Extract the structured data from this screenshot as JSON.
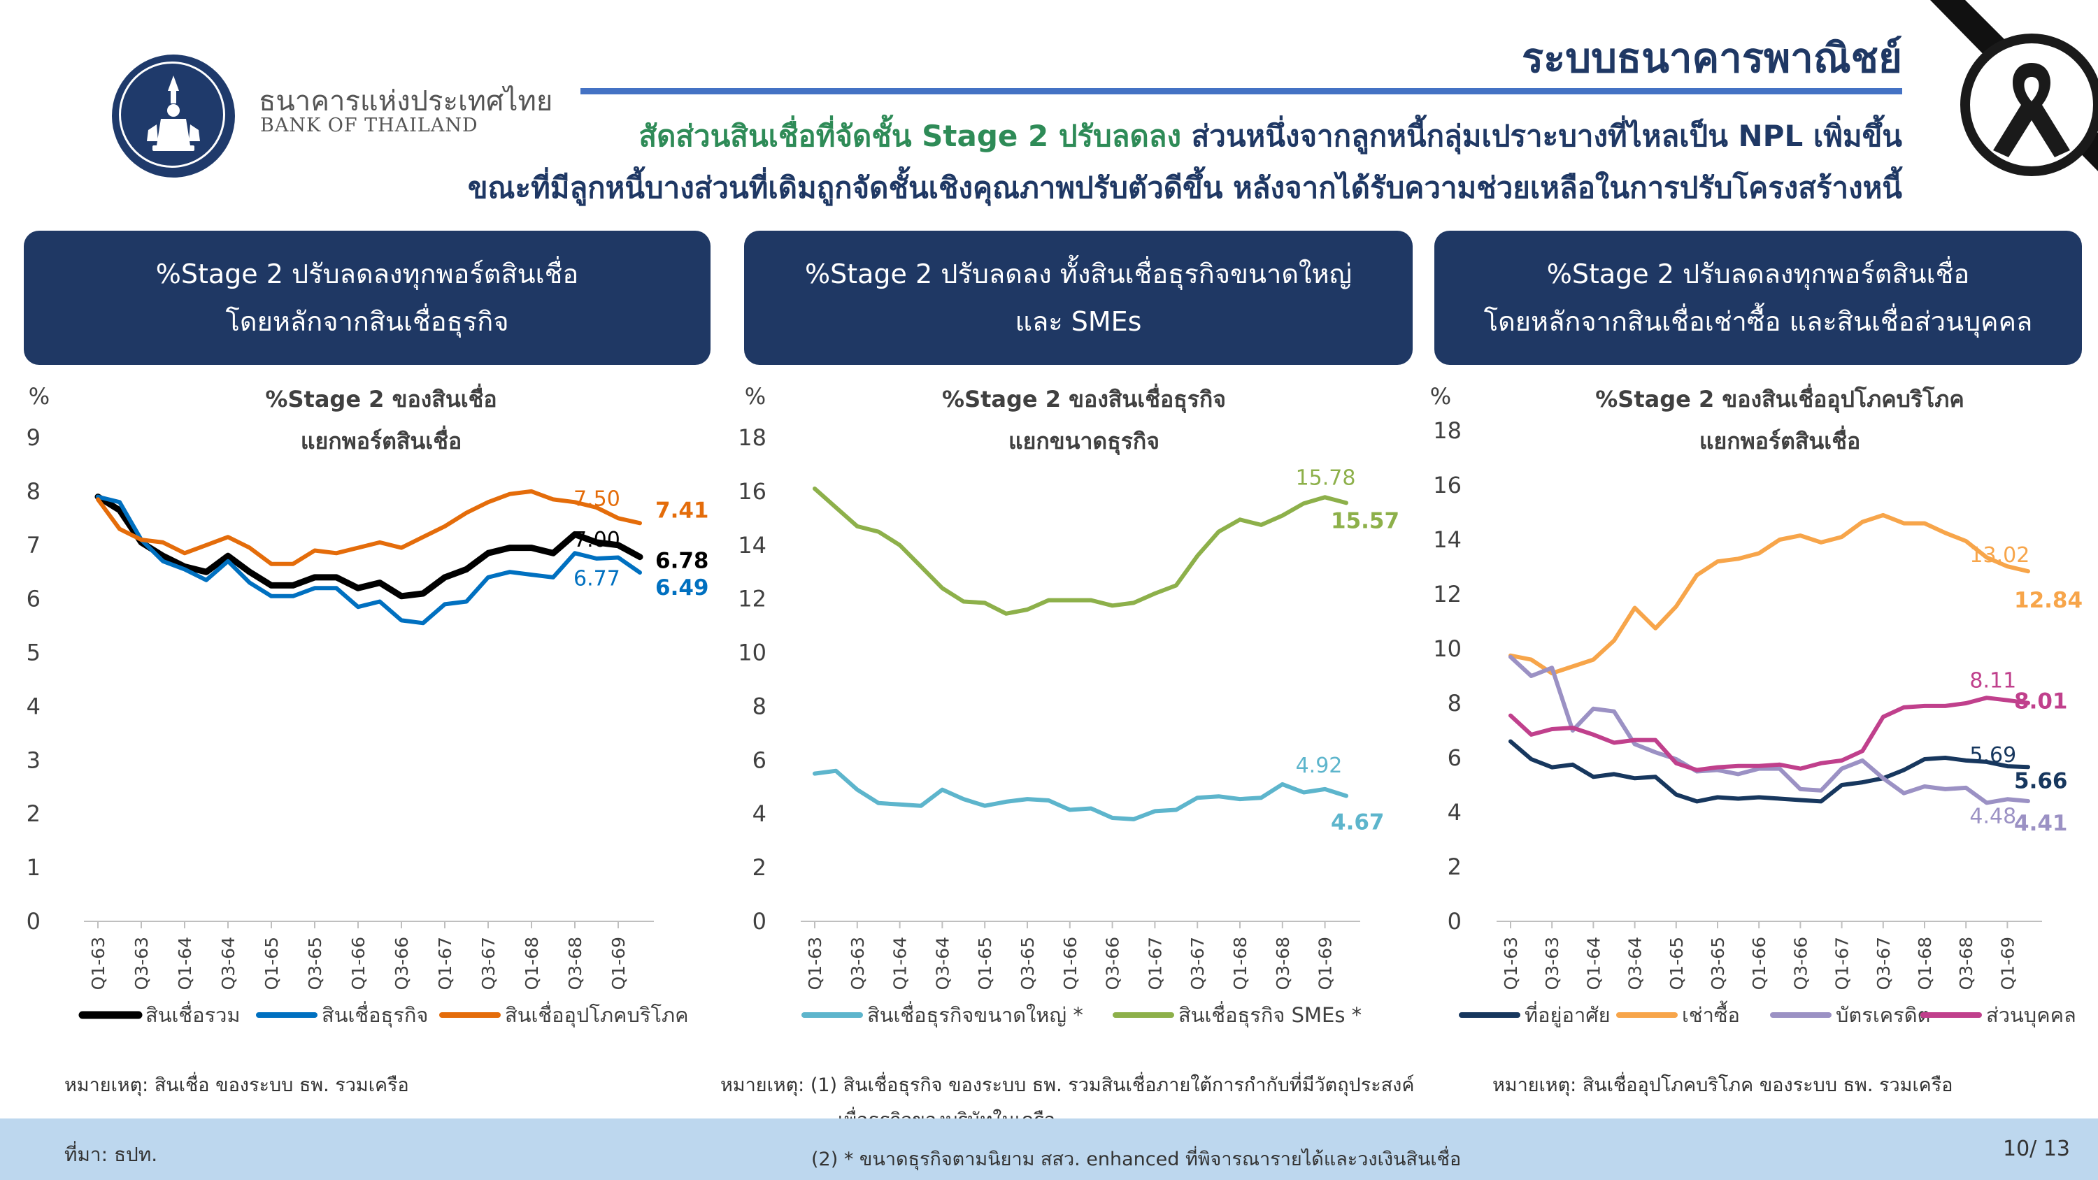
{
  "header": {
    "bank_name_th": "ธนาคารแห่งประเทศไทย",
    "bank_name_en": "BANK OF THAILAND",
    "page_title": "ระบบธนาคารพาณิชย์",
    "headline_part1": "สัดส่วนสินเชื่อที่จัดชั้น Stage 2 ปรับลดลง",
    "headline_part2": " ส่วนหนึ่งจากลูกหนี้กลุ่มเปราะบางที่ไหลเป็น NPL เพิ่มขึ้น",
    "headline_line2": "ขณะที่มีลูกหนี้บางส่วนที่เดิมถูกจัดชั้นเชิงคุณภาพปรับตัวดีขึ้น หลังจากได้รับความช่วยเหลือในการปรับโครงสร้างหนี้"
  },
  "colors": {
    "navy": "#1f3864",
    "black_series": "#000000",
    "blue_series": "#0070c0",
    "orange_series": "#e46c0a",
    "olive_series": "#8db04a",
    "cyan_series": "#5db5cc",
    "darknavy_series": "#17375e",
    "lightorange_series": "#f7a54a",
    "lavender_series": "#9b91c4",
    "magenta_series": "#c0408c"
  },
  "panels": [
    {
      "line1": "%Stage 2 ปรับลดลงทุกพอร์ตสินเชื่อ",
      "line2": "โดยหลักจากสินเชื่อธุรกิจ"
    },
    {
      "line1": "%Stage 2 ปรับลดลง ทั้งสินเชื่อธุรกิจขนาดใหญ่",
      "line2": "และ SMEs"
    },
    {
      "line1": "%Stage 2 ปรับลดลงทุกพอร์ตสินเชื่อ",
      "line2": "โดยหลักจากสินเชื่อเช่าซื้อ และสินเชื่อส่วนบุคคล"
    }
  ],
  "notes": {
    "note1": "หมายเหตุ: สินเชื่อ ของระบบ ธพ. รวมเครือ",
    "note2_a": "หมายเหตุ: (1) สินเชื่อธุรกิจ ของระบบ ธพ. รวมสินเชื่อภายใต้การกำกับที่มีวัตถุประสงค์",
    "note2_b": "เพื่อธุรกิจของบริษัทในเครือ",
    "note2_c": "(2) * ขนาดธุรกิจตามนิยาม สสว. enhanced ที่พิจารณารายได้และวงเงินสินเชื่อ",
    "note3": "หมายเหตุ: สินเชื่ออุปโภคบริโภค ของระบบ ธพ. รวมเครือ"
  },
  "footer": {
    "source": "ที่มา: ธปท.",
    "page": "10/ 13"
  },
  "chart_data": [
    {
      "type": "line",
      "title": "%Stage 2 ของสินเชื่อ",
      "subtitle": "แยกพอร์ตสินเชื่อ",
      "ylabel": "%",
      "ylim": [
        0,
        9
      ],
      "yticks": [
        0,
        1,
        2,
        3,
        4,
        5,
        6,
        7,
        8,
        9
      ],
      "x_tick_labels": [
        "Q1-63",
        "Q3-63",
        "Q1-64",
        "Q3-64",
        "Q1-65",
        "Q3-65",
        "Q1-66",
        "Q3-66",
        "Q1-67",
        "Q3-67",
        "Q1-68",
        "Q3-68",
        "Q1-69"
      ],
      "n_points": 26,
      "legend_position": "bottom",
      "series": [
        {
          "name": "สินเชื่อรวม",
          "color": "#000000",
          "width": 9,
          "values": [
            7.9,
            7.65,
            7.05,
            6.8,
            6.6,
            6.5,
            6.8,
            6.5,
            6.25,
            6.25,
            6.4,
            6.4,
            6.2,
            6.3,
            6.05,
            6.1,
            6.4,
            6.55,
            6.85,
            6.95,
            6.95,
            6.85,
            7.2,
            7.05,
            7.0,
            6.78
          ],
          "label_prev": "7.00",
          "label_last": "6.78"
        },
        {
          "name": "สินเชื่อธุรกิจ",
          "color": "#0070c0",
          "width": 6,
          "values": [
            7.9,
            7.8,
            7.1,
            6.7,
            6.55,
            6.35,
            6.7,
            6.3,
            6.05,
            6.05,
            6.2,
            6.2,
            5.85,
            5.95,
            5.6,
            5.55,
            5.9,
            5.95,
            6.4,
            6.5,
            6.45,
            6.4,
            6.85,
            6.75,
            6.77,
            6.49
          ],
          "label_prev": "6.77",
          "label_last": "6.49"
        },
        {
          "name": "สินเชื่ออุปโภคบริโภค",
          "color": "#e46c0a",
          "width": 6,
          "values": [
            7.85,
            7.3,
            7.1,
            7.05,
            6.85,
            7.0,
            7.15,
            6.95,
            6.65,
            6.65,
            6.9,
            6.85,
            6.95,
            7.05,
            6.95,
            7.15,
            7.35,
            7.6,
            7.8,
            7.95,
            8.0,
            7.85,
            7.8,
            7.7,
            7.5,
            7.41
          ],
          "label_prev": "7.50",
          "label_last": "7.41"
        }
      ]
    },
    {
      "type": "line",
      "title": "%Stage 2 ของสินเชื่อธุรกิจ",
      "subtitle": "แยกขนาดธุรกิจ",
      "ylabel": "%",
      "ylim": [
        0,
        18
      ],
      "yticks": [
        0,
        2,
        4,
        6,
        8,
        10,
        12,
        14,
        16,
        18
      ],
      "x_tick_labels": [
        "Q1-63",
        "Q3-63",
        "Q1-64",
        "Q3-64",
        "Q1-65",
        "Q3-65",
        "Q1-66",
        "Q3-66",
        "Q1-67",
        "Q3-67",
        "Q1-68",
        "Q3-68",
        "Q1-69"
      ],
      "n_points": 26,
      "legend_position": "bottom",
      "series": [
        {
          "name": "สินเชื่อธุรกิจขนาดใหญ่ *",
          "color": "#5db5cc",
          "width": 6,
          "values": [
            5.5,
            5.6,
            4.9,
            4.4,
            4.35,
            4.3,
            4.9,
            4.55,
            4.3,
            4.45,
            4.55,
            4.5,
            4.15,
            4.2,
            3.85,
            3.8,
            4.1,
            4.15,
            4.6,
            4.65,
            4.55,
            4.6,
            5.1,
            4.8,
            4.92,
            4.67
          ],
          "label_prev": "4.92",
          "label_last": "4.67"
        },
        {
          "name": "สินเชื่อธุรกิจ SMEs *",
          "color": "#8db04a",
          "width": 6,
          "values": [
            16.1,
            15.4,
            14.7,
            14.5,
            14.0,
            13.2,
            12.4,
            11.9,
            11.85,
            11.45,
            11.6,
            11.95,
            11.95,
            11.95,
            11.75,
            11.85,
            12.2,
            12.5,
            13.6,
            14.5,
            14.95,
            14.75,
            15.1,
            15.55,
            15.78,
            15.57
          ],
          "label_prev": "15.78",
          "label_last": "15.57"
        }
      ]
    },
    {
      "type": "line",
      "title": "%Stage 2 ของสินเชื่ออุปโภคบริโภค",
      "subtitle": "แยกพอร์ตสินเชื่อ",
      "ylabel": "%",
      "ylim": [
        0,
        18
      ],
      "yticks": [
        0,
        2,
        4,
        6,
        8,
        10,
        12,
        14,
        16,
        18
      ],
      "x_tick_labels": [
        "Q1-63",
        "Q3-63",
        "Q1-64",
        "Q3-64",
        "Q1-65",
        "Q3-65",
        "Q1-66",
        "Q3-66",
        "Q1-67",
        "Q3-67",
        "Q1-68",
        "Q3-68",
        "Q1-69"
      ],
      "n_points": 26,
      "legend_position": "bottom",
      "series": [
        {
          "name": "ที่อยู่อาศัย",
          "color": "#17375e",
          "width": 6,
          "values": [
            6.6,
            5.95,
            5.65,
            5.75,
            5.3,
            5.4,
            5.25,
            5.3,
            4.65,
            4.4,
            4.55,
            4.5,
            4.55,
            4.5,
            4.45,
            4.4,
            5.0,
            5.1,
            5.25,
            5.55,
            5.95,
            6.0,
            5.9,
            5.85,
            5.69,
            5.66
          ],
          "label_prev": "5.69",
          "label_last": "5.66"
        },
        {
          "name": "เช่าซื้อ",
          "color": "#f7a54a",
          "width": 6,
          "values": [
            9.75,
            9.6,
            9.1,
            9.35,
            9.6,
            10.3,
            11.5,
            10.75,
            11.55,
            12.7,
            13.2,
            13.3,
            13.5,
            14.0,
            14.15,
            13.9,
            14.1,
            14.65,
            14.9,
            14.6,
            14.6,
            14.25,
            13.95,
            13.35,
            13.02,
            12.84
          ],
          "label_prev": "13.02",
          "label_last": "12.84"
        },
        {
          "name": "บัตรเครดิต",
          "color": "#9b91c4",
          "width": 6,
          "values": [
            9.7,
            9.0,
            9.3,
            7.0,
            7.8,
            7.7,
            6.5,
            6.2,
            5.95,
            5.5,
            5.55,
            5.4,
            5.6,
            5.6,
            4.85,
            4.8,
            5.6,
            5.9,
            5.25,
            4.7,
            4.95,
            4.85,
            4.9,
            4.35,
            4.48,
            4.41
          ],
          "label_prev": "4.48",
          "label_last": "4.41"
        },
        {
          "name": "ส่วนบุคคล",
          "color": "#c0408c",
          "width": 6,
          "values": [
            7.55,
            6.85,
            7.05,
            7.1,
            6.85,
            6.55,
            6.65,
            6.65,
            5.8,
            5.55,
            5.65,
            5.7,
            5.7,
            5.75,
            5.6,
            5.8,
            5.9,
            6.25,
            7.5,
            7.85,
            7.9,
            7.9,
            8.0,
            8.2,
            8.11,
            8.01
          ],
          "label_prev": "8.11",
          "label_last": "8.01"
        }
      ]
    }
  ]
}
